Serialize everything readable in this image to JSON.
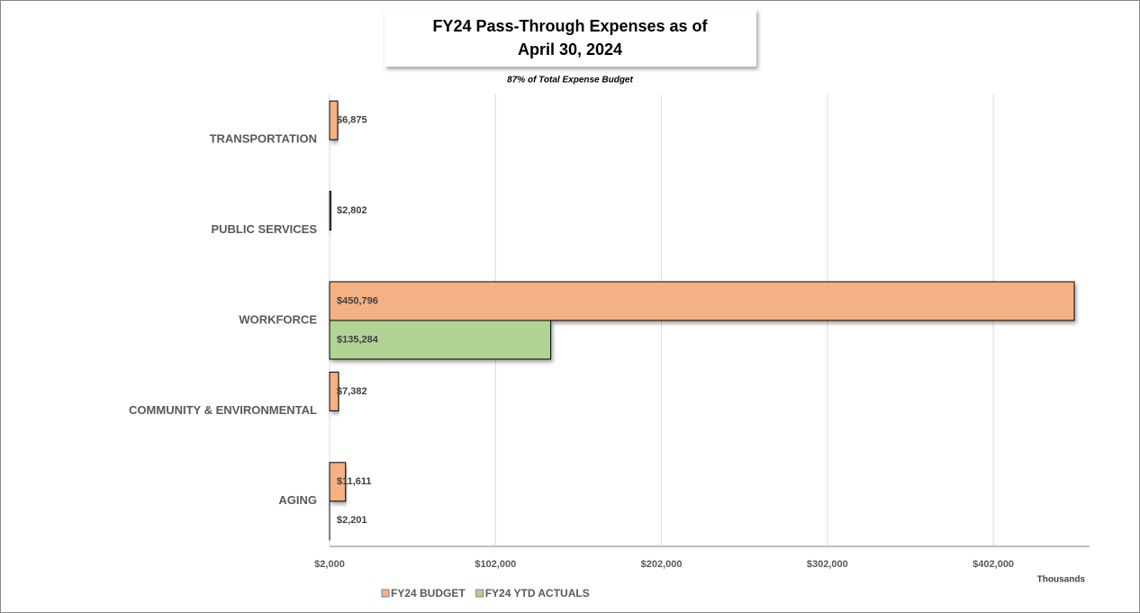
{
  "chart_data": {
    "type": "hbar",
    "title": [
      "FY24 Pass-Through Expenses as of",
      "April 30, 2024"
    ],
    "subtitle": "87% of Total Expense Budget",
    "x_axis_label": "Thousands",
    "categories": [
      "TRANSPORTATION",
      "PUBLIC SERVICES",
      "WORKFORCE",
      "COMMUNITY & ENVIRONMENTAL",
      "AGING"
    ],
    "series": [
      {
        "name": "FY24 BUDGET",
        "color": "#f4b183",
        "values": [
          6875,
          2802,
          450796,
          7382,
          11611
        ],
        "value_labels": [
          "$6,875",
          "$2,802",
          "$450,796",
          "$7,382",
          "$11,611"
        ]
      },
      {
        "name": "FY24 YTD ACTUALS",
        "color": "#b0d494",
        "values": [
          null,
          null,
          135284,
          null,
          2201
        ],
        "value_labels": [
          null,
          null,
          "$135,284",
          null,
          "$2,201"
        ]
      }
    ],
    "xlim": [
      2000,
      460000
    ],
    "xticks": [
      {
        "value": 2000,
        "label": "$2,000"
      },
      {
        "value": 102000,
        "label": "$102,000"
      },
      {
        "value": 202000,
        "label": "$202,000"
      },
      {
        "value": 302000,
        "label": "$302,000"
      },
      {
        "value": 402000,
        "label": "$402,000"
      }
    ],
    "grid": true,
    "legend": "bottom"
  }
}
